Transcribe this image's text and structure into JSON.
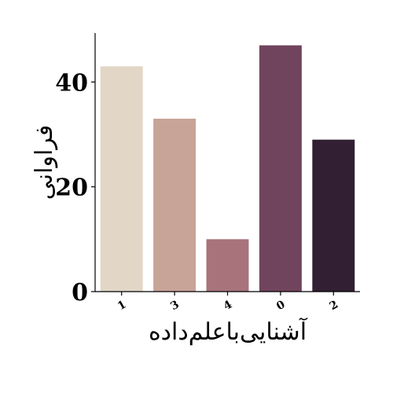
{
  "chart_data": {
    "type": "bar",
    "categories": [
      "1",
      "3",
      "4",
      "0",
      "2"
    ],
    "values": [
      43,
      33,
      10,
      47,
      29
    ],
    "colors": [
      "#e2d6c7",
      "#c8a398",
      "#a8737b",
      "#71445d",
      "#321f33"
    ],
    "xlabel": "آشنایی‌باعلم‌داده",
    "ylabel": "فراوانی",
    "ylim": [
      0,
      49.35
    ],
    "yticks": [
      0,
      20,
      40
    ],
    "ytick_labels": [
      "0",
      "20",
      "40"
    ],
    "grid": false
  }
}
